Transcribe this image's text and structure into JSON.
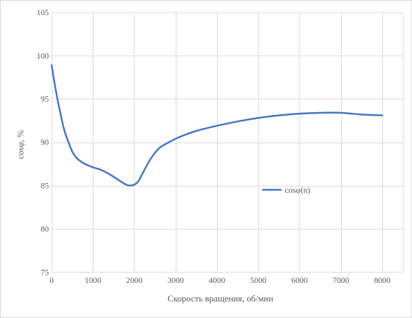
{
  "chart_data": {
    "type": "line",
    "xlabel": "Скорость вращения, об/мин",
    "ylabel": "cosφ, %",
    "xlim": [
      0,
      8500
    ],
    "ylim": [
      75,
      105
    ],
    "x_ticks": [
      "0",
      "1000",
      "2000",
      "3000",
      "4000",
      "5000",
      "6000",
      "7000",
      "8000"
    ],
    "y_ticks": [
      "75",
      "80",
      "85",
      "90",
      "95",
      "100",
      "105"
    ],
    "grid": true,
    "legend_position": "right",
    "series": [
      {
        "name": "cosφ(n)",
        "color": "#4472c4",
        "x": [
          0,
          100,
          200,
          300,
          400,
          500,
          600,
          700,
          800,
          1000,
          1200,
          1400,
          1600,
          1800,
          1900,
          2000,
          2100,
          2200,
          2400,
          2600,
          2800,
          3000,
          3200,
          3500,
          4000,
          4500,
          5000,
          5500,
          6000,
          6500,
          7000,
          7500,
          8000
        ],
        "values": [
          98.9,
          96.0,
          93.6,
          91.5,
          90.1,
          88.9,
          88.2,
          87.8,
          87.5,
          87.1,
          86.8,
          86.3,
          85.7,
          85.1,
          85.0,
          85.1,
          85.5,
          86.4,
          88.1,
          89.3,
          89.9,
          90.4,
          90.8,
          91.3,
          91.9,
          92.4,
          92.8,
          93.1,
          93.3,
          93.4,
          93.4,
          93.2,
          93.1
        ]
      }
    ]
  }
}
